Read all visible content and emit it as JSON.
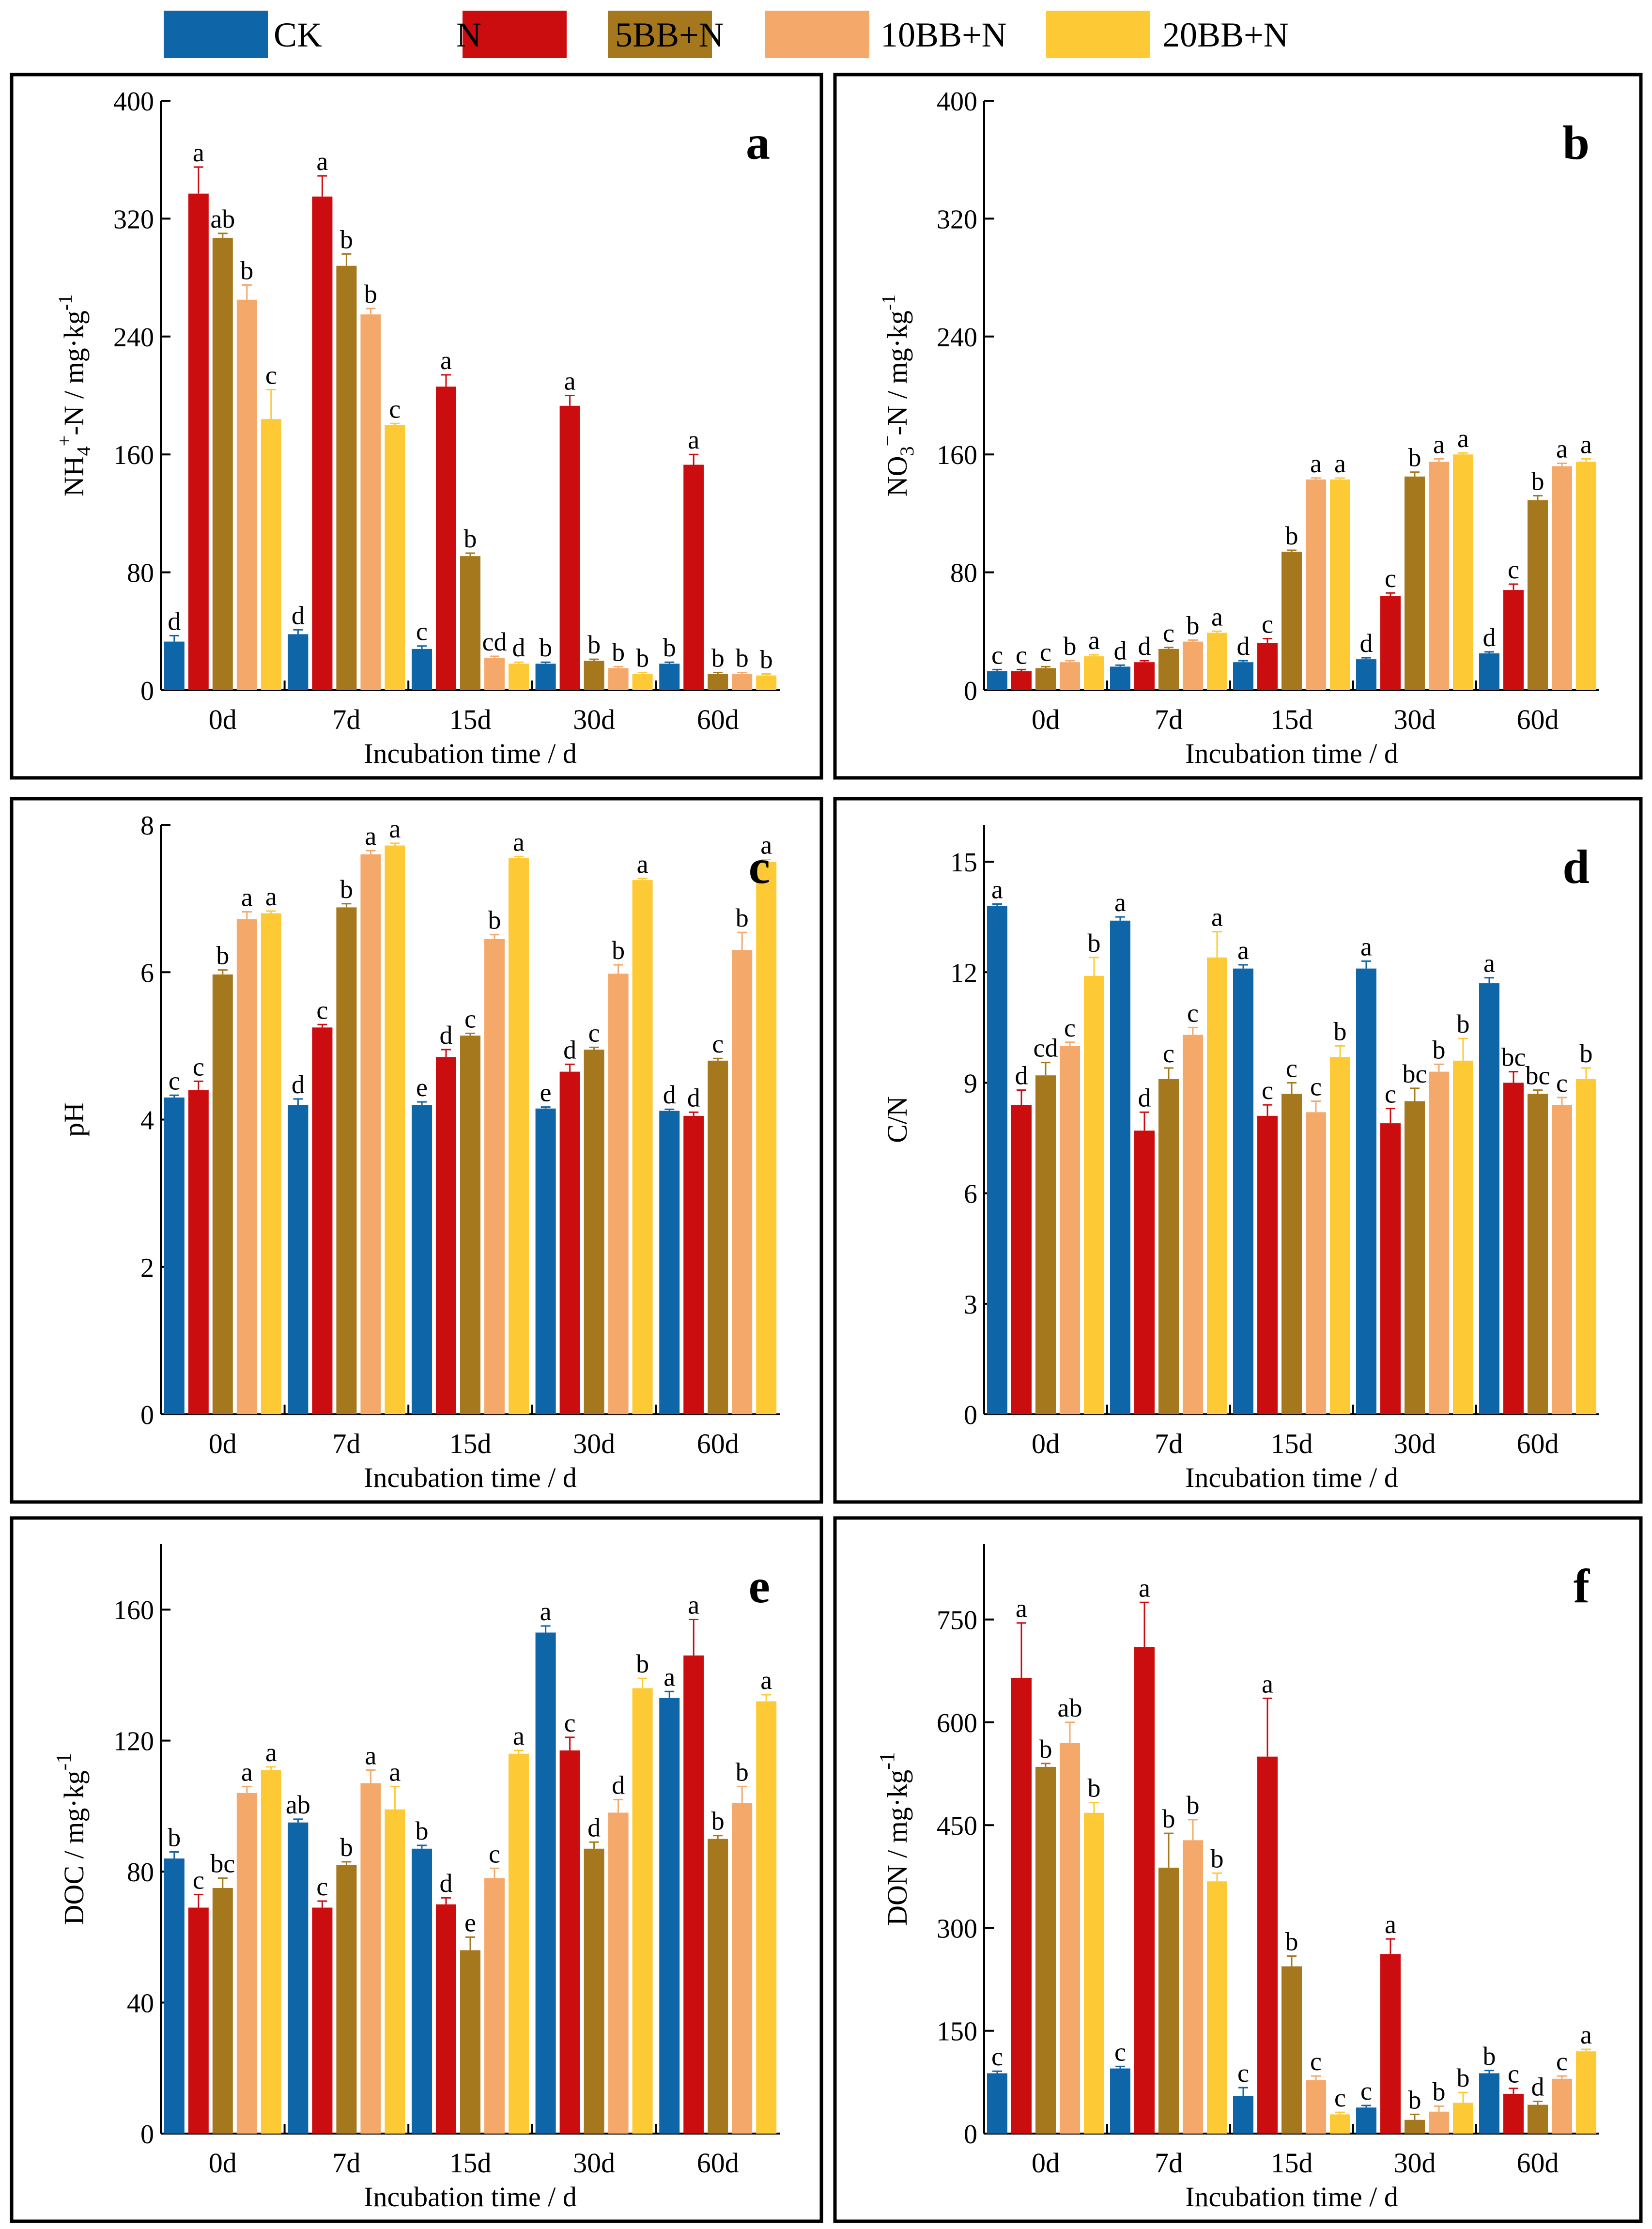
{
  "legend": [
    {
      "name": "CK",
      "color": "#0e65a8"
    },
    {
      "name": "N",
      "color": "#cc0d10"
    },
    {
      "name": "5BB+N",
      "color": "#a6781d"
    },
    {
      "name": "10BB+N",
      "color": "#f4a86a"
    },
    {
      "name": "20BB+N",
      "color": "#fdc935"
    }
  ],
  "chart_data": [
    {
      "id": "a",
      "type": "bar",
      "panel_label": "a",
      "categories": [
        "0d",
        "7d",
        "15d",
        "30d",
        "60d"
      ],
      "xlabel": "Incubation time / d",
      "ylabel": "NH4+-N / mg·kg-1",
      "ylim": [
        0,
        400
      ],
      "yticks": [
        0,
        80,
        160,
        240,
        320,
        400
      ],
      "series": [
        {
          "name": "CK",
          "values": [
            33,
            38,
            28,
            18,
            18
          ],
          "errors": [
            4,
            3,
            2,
            1,
            1
          ],
          "letters": [
            "d",
            "d",
            "c",
            "b",
            "b"
          ]
        },
        {
          "name": "N",
          "values": [
            337,
            335,
            206,
            193,
            153
          ],
          "errors": [
            18,
            14,
            8,
            7,
            7
          ],
          "letters": [
            "a",
            "a",
            "a",
            "a",
            "a"
          ]
        },
        {
          "name": "5BB+N",
          "values": [
            307,
            288,
            91,
            20,
            11
          ],
          "errors": [
            3,
            8,
            2,
            1,
            1
          ],
          "letters": [
            "ab",
            "b",
            "b",
            "b",
            "b"
          ]
        },
        {
          "name": "10BB+N",
          "values": [
            265,
            255,
            22,
            15,
            11
          ],
          "errors": [
            10,
            4,
            1,
            1,
            1
          ],
          "letters": [
            "b",
            "b",
            "cd",
            "b",
            "b"
          ]
        },
        {
          "name": "20BB+N",
          "values": [
            184,
            180,
            18,
            11,
            10
          ],
          "errors": [
            20,
            1,
            1,
            1,
            1
          ],
          "letters": [
            "c",
            "c",
            "d",
            "b",
            "b"
          ]
        }
      ]
    },
    {
      "id": "b",
      "type": "bar",
      "panel_label": "b",
      "categories": [
        "0d",
        "7d",
        "15d",
        "30d",
        "60d"
      ],
      "xlabel": "Incubation time / d",
      "ylabel": "NO3--N / mg·kg-1",
      "ylim": [
        0,
        400
      ],
      "yticks": [
        0,
        80,
        160,
        240,
        320,
        400
      ],
      "series": [
        {
          "name": "CK",
          "values": [
            13,
            16,
            19,
            21,
            25
          ],
          "errors": [
            1,
            1,
            1,
            1,
            1
          ],
          "letters": [
            "c",
            "d",
            "d",
            "d",
            "d"
          ]
        },
        {
          "name": "N",
          "values": [
            13,
            19,
            32,
            64,
            68
          ],
          "errors": [
            1,
            1,
            3,
            2,
            4
          ],
          "letters": [
            "c",
            "d",
            "c",
            "c",
            "c"
          ]
        },
        {
          "name": "5BB+N",
          "values": [
            15,
            28,
            94,
            145,
            129
          ],
          "errors": [
            1,
            1,
            1,
            3,
            3
          ],
          "letters": [
            "c",
            "c",
            "b",
            "b",
            "b"
          ]
        },
        {
          "name": "10BB+N",
          "values": [
            19,
            33,
            143,
            155,
            152
          ],
          "errors": [
            1,
            1,
            1,
            2,
            2
          ],
          "letters": [
            "b",
            "b",
            "a",
            "a",
            "a"
          ]
        },
        {
          "name": "20BB+N",
          "values": [
            23,
            39,
            143,
            160,
            155
          ],
          "errors": [
            1,
            1,
            1,
            1,
            2
          ],
          "letters": [
            "a",
            "a",
            "a",
            "a",
            "a"
          ]
        }
      ]
    },
    {
      "id": "c",
      "type": "bar",
      "panel_label": "c",
      "categories": [
        "0d",
        "7d",
        "15d",
        "30d",
        "60d"
      ],
      "xlabel": "Incubation time / d",
      "ylabel": "pH",
      "ylim": [
        0,
        8
      ],
      "yticks": [
        0,
        2,
        4,
        6,
        8
      ],
      "series": [
        {
          "name": "CK",
          "values": [
            4.3,
            4.2,
            4.2,
            4.15,
            4.12
          ],
          "errors": [
            0.03,
            0.08,
            0.04,
            0.02,
            0.02
          ],
          "letters": [
            "c",
            "d",
            "e",
            "e",
            "d"
          ]
        },
        {
          "name": "N",
          "values": [
            4.4,
            5.25,
            4.85,
            4.65,
            4.05
          ],
          "errors": [
            0.12,
            0.04,
            0.1,
            0.1,
            0.05
          ],
          "letters": [
            "c",
            "c",
            "d",
            "d",
            "d"
          ]
        },
        {
          "name": "5BB+N",
          "values": [
            5.97,
            6.88,
            5.14,
            4.95,
            4.8
          ],
          "errors": [
            0.06,
            0.05,
            0.03,
            0.03,
            0.03
          ],
          "letters": [
            "b",
            "b",
            "c",
            "c",
            "c"
          ]
        },
        {
          "name": "10BB+N",
          "values": [
            6.72,
            7.6,
            6.45,
            5.98,
            6.3
          ],
          "errors": [
            0.1,
            0.05,
            0.06,
            0.12,
            0.24
          ],
          "letters": [
            "a",
            "a",
            "b",
            "b",
            "b"
          ]
        },
        {
          "name": "20BB+N",
          "values": [
            6.8,
            7.72,
            7.55,
            7.25,
            7.5
          ],
          "errors": [
            0.03,
            0.03,
            0.02,
            0.02,
            0.03
          ],
          "letters": [
            "a",
            "a",
            "a",
            "a",
            "a"
          ]
        }
      ]
    },
    {
      "id": "d",
      "type": "bar",
      "panel_label": "d",
      "categories": [
        "0d",
        "7d",
        "15d",
        "30d",
        "60d"
      ],
      "xlabel": "Incubation time / d",
      "ylabel": "C/N",
      "ylim": [
        0,
        16
      ],
      "yticks": [
        0,
        3,
        6,
        9,
        12,
        15
      ],
      "series": [
        {
          "name": "CK",
          "values": [
            13.8,
            13.4,
            12.1,
            12.1,
            11.7
          ],
          "errors": [
            0.05,
            0.1,
            0.1,
            0.2,
            0.15
          ],
          "letters": [
            "a",
            "a",
            "a",
            "a",
            "a"
          ]
        },
        {
          "name": "N",
          "values": [
            8.4,
            7.7,
            8.1,
            7.9,
            9.0
          ],
          "errors": [
            0.4,
            0.5,
            0.3,
            0.4,
            0.3
          ],
          "letters": [
            "d",
            "d",
            "c",
            "c",
            "bc"
          ]
        },
        {
          "name": "5BB+N",
          "values": [
            9.2,
            9.1,
            8.7,
            8.5,
            8.7
          ],
          "errors": [
            0.35,
            0.3,
            0.3,
            0.35,
            0.1
          ],
          "letters": [
            "cd",
            "c",
            "c",
            "bc",
            "bc"
          ]
        },
        {
          "name": "10BB+N",
          "values": [
            10.0,
            10.3,
            8.2,
            9.3,
            8.4
          ],
          "errors": [
            0.1,
            0.2,
            0.3,
            0.2,
            0.2
          ],
          "letters": [
            "c",
            "c",
            "c",
            "b",
            "c"
          ]
        },
        {
          "name": "20BB+N",
          "values": [
            11.9,
            12.4,
            9.7,
            9.6,
            9.1
          ],
          "errors": [
            0.5,
            0.7,
            0.3,
            0.6,
            0.3
          ],
          "letters": [
            "b",
            "a",
            "b",
            "b",
            "b"
          ]
        }
      ]
    },
    {
      "id": "e",
      "type": "bar",
      "panel_label": "e",
      "categories": [
        "0d",
        "7d",
        "15d",
        "30d",
        "60d"
      ],
      "xlabel": "Incubation time / d",
      "ylabel": "DOC / mg·kg-1",
      "ylim": [
        0,
        180
      ],
      "yticks": [
        0,
        40,
        80,
        120,
        160
      ],
      "series": [
        {
          "name": "CK",
          "values": [
            84,
            95,
            87,
            153,
            133
          ],
          "errors": [
            2,
            1,
            1,
            2,
            2
          ],
          "letters": [
            "b",
            "ab",
            "b",
            "a",
            "a"
          ]
        },
        {
          "name": "N",
          "values": [
            69,
            69,
            70,
            117,
            146
          ],
          "errors": [
            4,
            2,
            2,
            4,
            11
          ],
          "letters": [
            "c",
            "c",
            "d",
            "c",
            "a"
          ]
        },
        {
          "name": "5BB+N",
          "values": [
            75,
            82,
            56,
            87,
            90
          ],
          "errors": [
            3,
            1,
            4,
            2,
            1
          ],
          "letters": [
            "bc",
            "b",
            "e",
            "d",
            "b"
          ]
        },
        {
          "name": "10BB+N",
          "values": [
            104,
            107,
            78,
            98,
            101
          ],
          "errors": [
            2,
            4,
            3,
            4,
            5
          ],
          "letters": [
            "a",
            "a",
            "c",
            "d",
            "b"
          ]
        },
        {
          "name": "20BB+N",
          "values": [
            111,
            99,
            116,
            136,
            132
          ],
          "errors": [
            1,
            7,
            1,
            3,
            2
          ],
          "letters": [
            "a",
            "a",
            "a",
            "b",
            "a"
          ]
        }
      ]
    },
    {
      "id": "f",
      "type": "bar",
      "panel_label": "f",
      "categories": [
        "0d",
        "7d",
        "15d",
        "30d",
        "60d"
      ],
      "xlabel": "Incubation time / d",
      "ylabel": "DON / mg·kg-1",
      "ylim": [
        0,
        860
      ],
      "yticks": [
        0,
        150,
        300,
        450,
        600,
        750
      ],
      "series": [
        {
          "name": "CK",
          "values": [
            88,
            95,
            55,
            38,
            88
          ],
          "errors": [
            3,
            3,
            12,
            3,
            4
          ],
          "letters": [
            "c",
            "c",
            "c",
            "c",
            "b"
          ]
        },
        {
          "name": "N",
          "values": [
            665,
            710,
            550,
            262,
            58
          ],
          "errors": [
            80,
            65,
            85,
            22,
            8
          ],
          "letters": [
            "a",
            "a",
            "a",
            "a",
            "c"
          ]
        },
        {
          "name": "5BB+N",
          "values": [
            535,
            388,
            244,
            20,
            42
          ],
          "errors": [
            5,
            50,
            15,
            8,
            5
          ],
          "letters": [
            "b",
            "b",
            "b",
            "b",
            "d"
          ]
        },
        {
          "name": "10BB+N",
          "values": [
            570,
            428,
            78,
            32,
            80
          ],
          "errors": [
            30,
            30,
            6,
            8,
            4
          ],
          "letters": [
            "ab",
            "b",
            "c",
            "b",
            "c"
          ]
        },
        {
          "name": "20BB+N",
          "values": [
            468,
            368,
            28,
            45,
            120
          ],
          "errors": [
            15,
            12,
            3,
            15,
            3
          ],
          "letters": [
            "b",
            "b",
            "c",
            "b",
            "a"
          ]
        }
      ]
    }
  ]
}
